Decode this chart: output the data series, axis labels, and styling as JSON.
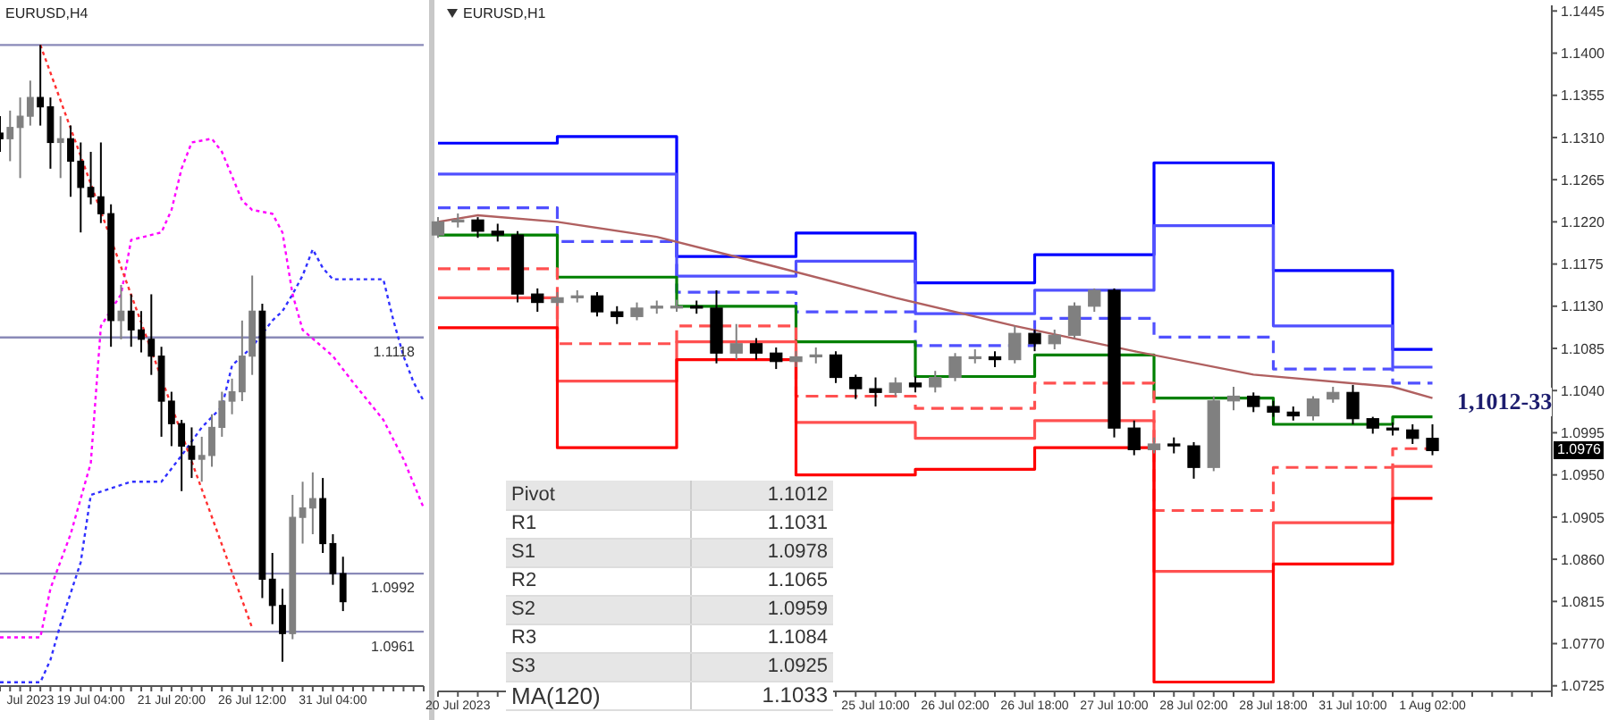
{
  "chart_data": [
    {
      "type": "candlestick",
      "title": "EURUSD,H4",
      "colors": [
        "#000000",
        "#808080",
        "#808080",
        "#808080",
        "#000000",
        "#000000",
        "#808080",
        "#000000",
        "#000000",
        "#000000",
        "#000000",
        "#000000",
        "#808080",
        "#000000",
        "#000000",
        "#000000",
        "#000000",
        "#000000",
        "#000000",
        "#000000",
        "#808080",
        "#808080",
        "#808080",
        "#808080",
        "#808080",
        "#808080",
        "#000000",
        "#000000",
        "#000000",
        "#808080",
        "#808080",
        "#808080",
        "#000000",
        "#000000",
        "#000000",
        null,
        null,
        null,
        null,
        null,
        null,
        null,
        null
      ],
      "tick_labels": "x",
      "ylim": [
        1.0932,
        1.1298
      ],
      "categories": [
        null,
        null,
        null,
        "Jul 2023",
        null,
        null,
        null,
        null,
        null,
        "19 Jul 04:00",
        null,
        null,
        null,
        null,
        null,
        null,
        null,
        "21 Jul 20:00",
        null,
        null,
        null,
        null,
        null,
        null,
        null,
        "26 Jul 12:00",
        null,
        null,
        null,
        null,
        null,
        null,
        null,
        "31 Jul 04:00",
        null,
        null,
        null,
        null,
        null,
        null,
        null,
        null,
        null
      ],
      "ohlc": [
        [
          1.1227,
          1.1236,
          1.1217,
          1.1224
        ],
        [
          1.1224,
          1.1239,
          1.1212,
          1.123
        ],
        [
          1.123,
          1.1246,
          1.1203,
          1.1236
        ],
        [
          1.1236,
          1.1255,
          1.1231,
          1.1246
        ],
        [
          1.1246,
          1.1274,
          1.1231,
          1.1241
        ],
        [
          1.1241,
          1.1246,
          1.1208,
          1.1222
        ],
        [
          1.1222,
          1.1236,
          1.1203,
          1.1224
        ],
        [
          1.1224,
          1.1231,
          1.1193,
          1.1212
        ],
        [
          1.1212,
          1.1222,
          1.1174,
          1.1198
        ],
        [
          1.1198,
          1.1217,
          1.1189,
          1.1193
        ],
        [
          1.1193,
          1.1222,
          1.1179,
          1.1184
        ],
        [
          1.1184,
          1.1189,
          1.1113,
          1.1127
        ],
        [
          1.1127,
          1.1146,
          1.1117,
          1.1132
        ],
        [
          1.1132,
          1.1141,
          1.1113,
          1.1122
        ],
        [
          1.1122,
          1.1132,
          1.111,
          1.1117
        ],
        [
          1.1117,
          1.1141,
          1.1098,
          1.1108
        ],
        [
          1.1108,
          1.1113,
          1.1065,
          1.1084
        ],
        [
          1.1084,
          1.1089,
          1.106,
          1.1072
        ],
        [
          1.1072,
          1.1074,
          1.1036,
          1.106
        ],
        [
          1.106,
          1.107,
          1.1043,
          1.1053
        ],
        [
          1.1053,
          1.1065,
          1.1041,
          1.1055
        ],
        [
          1.1055,
          1.1077,
          1.1049,
          1.107
        ],
        [
          1.107,
          1.1089,
          1.1065,
          1.1084
        ],
        [
          1.1084,
          1.1096,
          1.1077,
          1.1089
        ],
        [
          1.1089,
          1.1127,
          1.1084,
          1.1108
        ],
        [
          1.1108,
          1.1151,
          1.1098,
          1.1132
        ],
        [
          1.1132,
          1.1136,
          1.0979,
          1.0989
        ],
        [
          1.0989,
          1.1003,
          1.0965,
          1.0975
        ],
        [
          1.0975,
          1.0984,
          1.0945,
          1.096
        ],
        [
          1.096,
          1.1034,
          1.0957,
          1.1022
        ],
        [
          1.1022,
          1.1041,
          1.1008,
          1.1027
        ],
        [
          1.1027,
          1.1046,
          1.1013,
          1.1032
        ],
        [
          1.1032,
          1.1043,
          1.1003,
          1.1008
        ],
        [
          1.1008,
          1.1013,
          1.0986,
          1.0992
        ],
        [
          1.0992,
          1.1001,
          1.0972,
          1.0977
        ],
        null,
        null,
        null,
        null,
        null,
        null,
        null,
        null
      ],
      "series": [
        {
          "type": "line",
          "color": "#ff00ff",
          "line_style": "dotted",
          "values": [
            1.0958,
            null,
            null,
            null,
            1.0958,
            1.0984,
            null,
            1.1013,
            1.1032,
            1.1051,
            1.1124,
            null,
            1.1141,
            1.117,
            null,
            null,
            1.1174,
            1.1186,
            1.1208,
            1.1222,
            null,
            1.1224,
            1.1217,
            null,
            1.1191,
            1.1186,
            null,
            1.1184,
            1.1174,
            1.1141,
            1.1122,
            null,
            null,
            1.1108,
            null,
            1.1094,
            null,
            null,
            1.1074,
            null,
            1.1053,
            null,
            1.1027
          ]
        },
        {
          "type": "line",
          "color": "#3030ff",
          "line_style": "dotted",
          "values": [
            1.0934,
            null,
            null,
            null,
            1.0934,
            1.0946,
            1.0965,
            null,
            1.0998,
            1.1034,
            null,
            null,
            null,
            1.1041,
            null,
            null,
            1.1041,
            null,
            1.1055,
            null,
            1.107,
            null,
            1.1081,
            1.1103,
            null,
            1.1113,
            null,
            1.1127,
            1.1132,
            1.1141,
            1.1151,
            1.1165,
            1.1155,
            1.1149,
            null,
            null,
            null,
            null,
            1.1149,
            1.1127,
            1.1108,
            1.1094,
            1.1084
          ]
        },
        {
          "type": "line",
          "color": "#ff3030",
          "line_style": "dotted",
          "values": [
            null,
            null,
            null,
            null,
            1.1274,
            null,
            null,
            null,
            null,
            null,
            null,
            null,
            null,
            null,
            null,
            null,
            null,
            null,
            null,
            null,
            null,
            null,
            null,
            null,
            null,
            1.0963,
            null,
            null,
            null,
            null,
            null,
            null,
            null,
            null,
            null,
            null,
            null,
            null,
            null,
            null,
            null,
            null,
            null
          ]
        }
      ],
      "ref_lines": [
        {
          "axis": "y",
          "value": 1.1274,
          "label": null,
          "color": "#8a8ab8"
        },
        {
          "axis": "y",
          "value": 1.1118,
          "label": "1.1118",
          "color": "#8a8ab8"
        },
        {
          "axis": "y",
          "value": 1.0992,
          "label": "1.0992",
          "color": "#8a8ab8"
        },
        {
          "axis": "y",
          "value": 1.0961,
          "label": "1.0961",
          "color": "#8a8ab8"
        }
      ]
    },
    {
      "type": "candlestick",
      "title": "EURUSD,H1",
      "colors": [
        "#808080",
        "#808080",
        "#000000",
        "#000000",
        "#000000",
        "#000000",
        "#808080",
        "#808080",
        "#000000",
        "#000000",
        "#808080",
        "#808080",
        "#808080",
        "#000000",
        "#000000",
        "#808080",
        "#000000",
        "#000000",
        "#808080",
        "#808080",
        "#000000",
        "#000000",
        "#000000",
        "#808080",
        "#000000",
        "#808080",
        "#808080",
        "#808080",
        "#000000",
        "#808080",
        "#000000",
        "#808080",
        "#808080",
        "#808080",
        "#000000",
        "#000000",
        "#808080",
        "#000000",
        "#000000",
        "#808080",
        "#808080",
        "#000000",
        "#000000",
        "#000000",
        "#808080",
        "#808080",
        "#000000",
        "#000000",
        "#000000",
        "#000000",
        "#000000",
        null,
        null,
        null,
        null,
        null,
        null
      ],
      "ylim": [
        1.0719,
        1.1451
      ],
      "categories": [
        null,
        "20 Jul 2023",
        null,
        null,
        null,
        null,
        null,
        null,
        null,
        null,
        null,
        null,
        null,
        null,
        null,
        null,
        null,
        null,
        null,
        null,
        null,
        null,
        "25 Jul 10:00",
        null,
        null,
        null,
        "26 Jul 02:00",
        null,
        null,
        null,
        "26 Jul 18:00",
        null,
        null,
        null,
        "27 Jul 10:00",
        null,
        null,
        null,
        "28 Jul 02:00",
        null,
        null,
        null,
        "28 Jul 18:00",
        null,
        null,
        null,
        "31 Jul 10:00",
        null,
        null,
        null,
        "1 Aug 02:00",
        null,
        null,
        null,
        null,
        null,
        null
      ],
      "yticks": [
        1.1445,
        {
          "value": 1.14,
          "label": "1.1400"
        },
        1.1355,
        {
          "value": 1.131,
          "label": "1.1310"
        },
        1.1265,
        {
          "value": 1.122,
          "label": "1.1220"
        },
        1.1175,
        {
          "value": 1.113,
          "label": "1.1130"
        },
        1.1085,
        {
          "value": 1.104,
          "label": "1.1040"
        },
        1.0995,
        {
          "value": 1.095,
          "label": "1.0950"
        },
        1.0905,
        {
          "value": 1.086,
          "label": "1.0860"
        },
        1.0815,
        {
          "value": 1.077,
          "label": "1.0770"
        },
        1.0725
      ],
      "ohlc": [
        [
          1.1206,
          1.1225,
          1.1203,
          1.122
        ],
        [
          1.122,
          1.1229,
          1.1214,
          1.1222
        ],
        [
          1.1222,
          1.1225,
          1.1203,
          1.121
        ],
        [
          1.121,
          1.1218,
          1.1199,
          1.1206
        ],
        [
          1.1206,
          1.121,
          1.1134,
          1.1143
        ],
        [
          1.1143,
          1.1149,
          1.1124,
          1.1134
        ],
        [
          1.1134,
          1.1145,
          1.113,
          1.1139
        ],
        [
          1.1139,
          1.1147,
          1.1134,
          1.1141
        ],
        [
          1.1141,
          1.1145,
          1.1119,
          1.1124
        ],
        [
          1.1124,
          1.113,
          1.1111,
          1.1119
        ],
        [
          1.1119,
          1.1134,
          1.1115,
          1.1128
        ],
        [
          1.1128,
          1.1136,
          1.1122,
          1.113
        ],
        [
          1.113,
          1.1137,
          1.1124,
          1.113
        ],
        [
          1.113,
          1.1136,
          1.1122,
          1.1128
        ],
        [
          1.1128,
          1.1147,
          1.1069,
          1.108
        ],
        [
          1.108,
          1.1111,
          1.1073,
          1.109
        ],
        [
          1.109,
          1.1096,
          1.1073,
          1.108
        ],
        [
          1.108,
          1.1086,
          1.1063,
          1.1071
        ],
        [
          1.1071,
          1.1082,
          1.1065,
          1.1076
        ],
        [
          1.1076,
          1.1086,
          1.1069,
          1.1078
        ],
        [
          1.1078,
          1.1082,
          1.1048,
          1.1054
        ],
        [
          1.1054,
          1.1057,
          1.1031,
          1.1042
        ],
        [
          1.1042,
          1.1054,
          1.1023,
          1.1038
        ],
        [
          1.1038,
          1.1054,
          1.1034,
          1.1048
        ],
        [
          1.1048,
          1.1055,
          1.1038,
          1.1044
        ],
        [
          1.1044,
          1.1061,
          1.1038,
          1.1054
        ],
        [
          1.1054,
          1.108,
          1.105,
          1.1076
        ],
        [
          1.1076,
          1.1084,
          1.1069,
          1.1076
        ],
        [
          1.1076,
          1.1082,
          1.1065,
          1.1073
        ],
        [
          1.1073,
          1.1109,
          1.1069,
          1.1101
        ],
        [
          1.1101,
          1.1105,
          1.1082,
          1.109
        ],
        [
          1.109,
          1.1105,
          1.1084,
          1.1099
        ],
        [
          1.1099,
          1.1134,
          1.1096,
          1.113
        ],
        [
          1.113,
          1.1149,
          1.1124,
          1.1147
        ],
        [
          1.1147,
          1.1149,
          1.099,
          1.1
        ],
        [
          1.1,
          1.1008,
          1.0971,
          1.0977
        ],
        [
          1.0977,
          1.099,
          1.0973,
          1.0983
        ],
        [
          1.0983,
          1.099,
          1.0973,
          1.0981
        ],
        [
          1.0981,
          1.0985,
          1.0946,
          1.0958
        ],
        [
          1.0958,
          1.1034,
          1.0954,
          1.1029
        ],
        [
          1.1029,
          1.1044,
          1.1019,
          1.1034
        ],
        [
          1.1034,
          1.1038,
          1.1017,
          1.1023
        ],
        [
          1.1023,
          1.1029,
          1.1012,
          1.1017
        ],
        [
          1.1017,
          1.1023,
          1.1008,
          1.1013
        ],
        [
          1.1013,
          1.1034,
          1.1008,
          1.1031
        ],
        [
          1.1031,
          1.1044,
          1.1027,
          1.1038
        ],
        [
          1.1038,
          1.1046,
          1.1004,
          1.101
        ],
        [
          1.101,
          1.1012,
          1.0994,
          1.1
        ],
        [
          1.1,
          1.1006,
          1.0992,
          1.0998
        ],
        [
          1.0998,
          1.1004,
          1.0983,
          1.0989
        ],
        [
          1.0989,
          1.1004,
          1.0971,
          1.0976
        ],
        null,
        null,
        null,
        null,
        null,
        null
      ],
      "series": [
        {
          "type": "step",
          "color": "#0000ff",
          "line_style": "solid",
          "values": [
            1.1304,
            null,
            null,
            null,
            null,
            null,
            1.1311,
            null,
            null,
            null,
            null,
            null,
            1.1183,
            null,
            null,
            null,
            null,
            null,
            1.1208,
            null,
            null,
            null,
            null,
            null,
            1.1155,
            null,
            null,
            null,
            null,
            null,
            1.1185,
            null,
            null,
            null,
            null,
            null,
            1.1283,
            null,
            null,
            null,
            null,
            null,
            1.1168,
            null,
            null,
            null,
            null,
            null,
            1.1084,
            null,
            1.1084,
            null,
            null,
            null,
            null,
            null,
            null
          ]
        },
        {
          "type": "step",
          "color": "#5050ff",
          "line_style": "solid",
          "values": [
            1.1271,
            null,
            null,
            null,
            null,
            null,
            1.1271,
            null,
            null,
            null,
            null,
            null,
            1.1162,
            null,
            null,
            null,
            null,
            null,
            1.1178,
            null,
            null,
            null,
            null,
            null,
            1.1122,
            null,
            null,
            null,
            null,
            null,
            1.1147,
            null,
            null,
            null,
            null,
            null,
            1.1216,
            null,
            null,
            null,
            null,
            null,
            1.1109,
            null,
            null,
            null,
            null,
            null,
            1.1065,
            null,
            1.1065,
            null,
            null,
            null,
            null,
            null,
            null
          ]
        },
        {
          "type": "step",
          "color": "#5050ff",
          "line_style": "dashed",
          "values": [
            1.1235,
            null,
            null,
            null,
            null,
            null,
            1.1199,
            null,
            null,
            null,
            null,
            null,
            1.1145,
            null,
            null,
            null,
            null,
            null,
            1.1124,
            null,
            null,
            null,
            null,
            null,
            1.1088,
            null,
            null,
            null,
            null,
            null,
            1.1117,
            null,
            null,
            null,
            null,
            null,
            1.1097,
            null,
            null,
            null,
            null,
            null,
            1.1063,
            null,
            null,
            null,
            null,
            null,
            1.1048,
            null,
            1.1048,
            null,
            null,
            null,
            null,
            null,
            null
          ]
        },
        {
          "type": "step",
          "color": "#008000",
          "line_style": "solid",
          "values": [
            1.1206,
            null,
            null,
            null,
            null,
            null,
            1.1161,
            null,
            null,
            null,
            null,
            null,
            1.113,
            null,
            null,
            null,
            null,
            null,
            1.1092,
            null,
            null,
            null,
            null,
            null,
            1.1055,
            null,
            null,
            null,
            null,
            null,
            1.1078,
            null,
            null,
            null,
            null,
            null,
            1.1032,
            null,
            null,
            null,
            null,
            null,
            1.1004,
            null,
            null,
            null,
            null,
            null,
            1.1012,
            null,
            1.1012,
            null,
            null,
            null,
            null,
            null,
            null
          ]
        },
        {
          "type": "step",
          "color": "#ff5050",
          "line_style": "dashed",
          "values": [
            1.117,
            null,
            null,
            null,
            null,
            null,
            1.109,
            null,
            null,
            null,
            null,
            null,
            1.1109,
            null,
            null,
            null,
            null,
            null,
            1.1034,
            null,
            null,
            null,
            null,
            null,
            1.1021,
            null,
            null,
            null,
            null,
            null,
            1.1048,
            null,
            null,
            null,
            null,
            null,
            1.0912,
            null,
            null,
            null,
            null,
            null,
            1.0958,
            null,
            null,
            null,
            null,
            null,
            1.0978,
            null,
            1.0978,
            null,
            null,
            null,
            null,
            null,
            null
          ]
        },
        {
          "type": "step",
          "color": "#ff5050",
          "line_style": "solid",
          "values": [
            1.1139,
            null,
            null,
            null,
            null,
            null,
            1.105,
            null,
            null,
            null,
            null,
            null,
            1.1092,
            null,
            null,
            null,
            null,
            null,
            1.1006,
            null,
            null,
            null,
            null,
            null,
            1.0989,
            null,
            null,
            null,
            null,
            null,
            1.1008,
            null,
            null,
            null,
            null,
            null,
            1.0847,
            null,
            null,
            null,
            null,
            null,
            1.0899,
            null,
            null,
            null,
            null,
            null,
            1.0959,
            null,
            1.0959,
            null,
            null,
            null,
            null,
            null,
            null
          ]
        },
        {
          "type": "step",
          "color": "#ff0000",
          "line_style": "solid",
          "values": [
            1.1107,
            null,
            null,
            null,
            null,
            null,
            1.0979,
            null,
            null,
            null,
            null,
            null,
            1.1073,
            null,
            null,
            null,
            null,
            null,
            1.095,
            null,
            null,
            null,
            null,
            null,
            1.0956,
            null,
            null,
            null,
            null,
            null,
            1.0979,
            null,
            null,
            null,
            null,
            null,
            1.0729,
            null,
            null,
            null,
            null,
            null,
            1.0855,
            null,
            null,
            null,
            null,
            null,
            1.0925,
            null,
            1.0925,
            null,
            null,
            null,
            null,
            null,
            null
          ]
        },
        {
          "type": "line",
          "color": "#b06060",
          "line_style": "solid",
          "values": [
            1.122,
            null,
            1.1227,
            null,
            null,
            null,
            1.122,
            null,
            null,
            null,
            null,
            1.1204,
            null,
            null,
            null,
            null,
            null,
            1.1172,
            null,
            null,
            null,
            null,
            null,
            1.1139,
            null,
            null,
            null,
            null,
            null,
            1.1109,
            null,
            null,
            null,
            null,
            null,
            1.1082,
            null,
            null,
            null,
            null,
            null,
            1.1057,
            null,
            null,
            null,
            null,
            null,
            null,
            1.1044,
            null,
            1.1032,
            null,
            null,
            null,
            null,
            null,
            null
          ]
        }
      ],
      "annotations": [
        "Pivot",
        "1.1012",
        "R1",
        "1.1031",
        "S1",
        "1.0978",
        "R2",
        "1.1065",
        "S2",
        "1.0959",
        "R3",
        "1.1084",
        "S3",
        "1.0925",
        "MA(120)",
        "1.1033",
        "1,1012-33",
        {
          "text": "1.0976",
          "y": 1.0976
        }
      ]
    }
  ]
}
